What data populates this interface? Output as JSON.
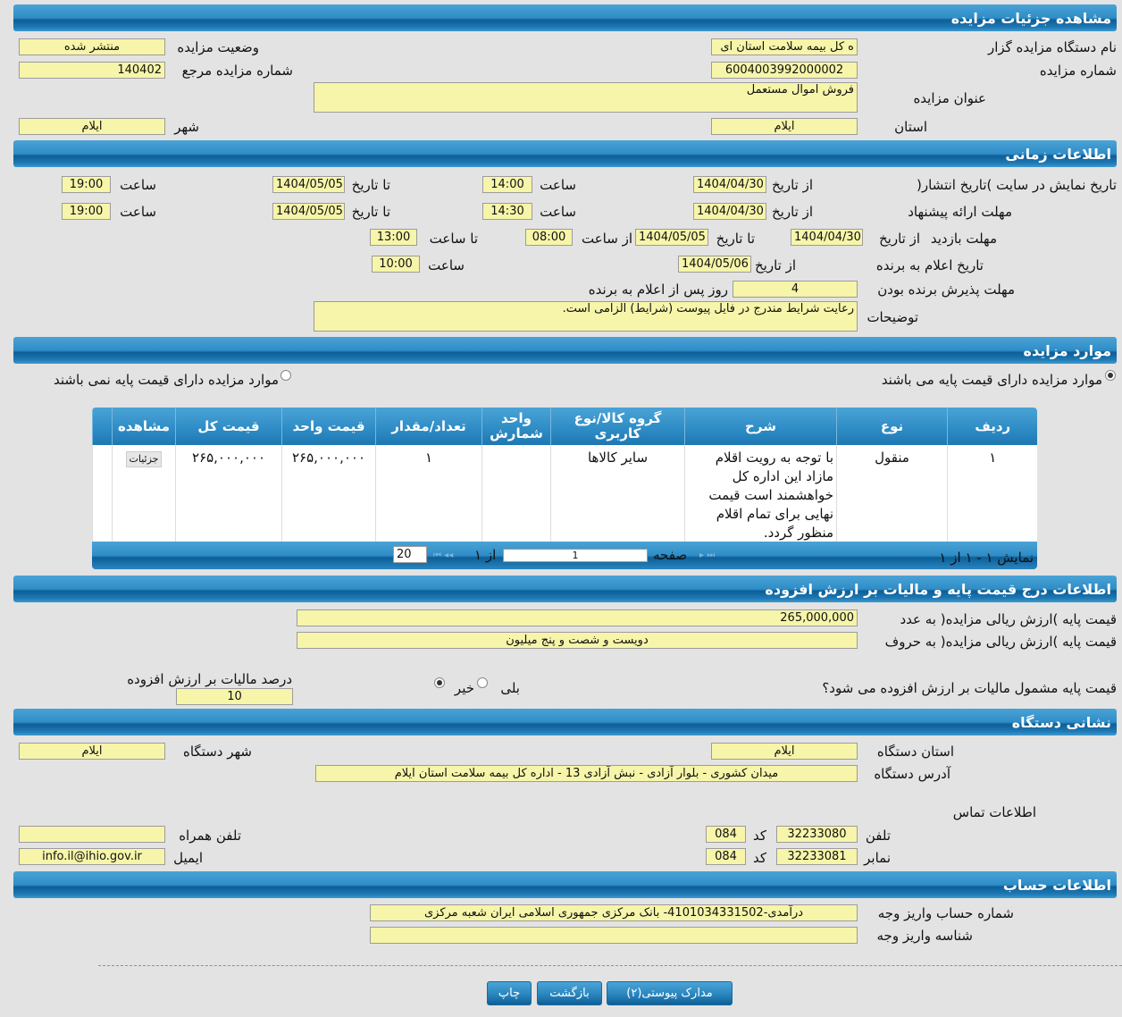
{
  "sections": {
    "details": "مشاهده جزئیات مزایده",
    "time": "اطلاعات زمانی",
    "items": "موارد مزایده",
    "price": "اطلاعات درج قیمت پایه و مالیات بر ارزش افزوده",
    "address": "نشانی دستگاه",
    "account": "اطلاعات حساب"
  },
  "details": {
    "org_label": "نام دستگاه مزایده گزار",
    "org_value": "ه کل بیمه سلامت استان ای",
    "status_label": "وضعیت مزایده",
    "status_value": "منتشر شده",
    "number_label": "شماره مزایده",
    "number_value": "6004003992000002",
    "ref_label": "شماره مزایده مرجع",
    "ref_value": "140402",
    "title_label": "عنوان مزایده",
    "title_value": "فروش اموال مستعمل",
    "province_label": "استان",
    "province_value": "ایلام",
    "city_label": "شهر",
    "city_value": "ایلام"
  },
  "time": {
    "from_date": "از تاریخ",
    "to_date": "تا تاریخ",
    "hour": "ساعت",
    "from_hour": "از ساعت",
    "to_hour": "تا ساعت",
    "publish": {
      "label": "تاریخ نمایش در سایت )تاریخ انتشار(",
      "from": "1404/04/30",
      "from_time": "14:00",
      "to": "1404/05/05",
      "to_time": "19:00"
    },
    "offer": {
      "label": "مهلت ارائه پیشنهاد",
      "from": "1404/04/30",
      "from_time": "14:30",
      "to": "1404/05/05",
      "to_time": "19:00"
    },
    "visit": {
      "label": "مهلت بازدید",
      "from": "1404/04/30",
      "to": "1404/05/05",
      "from_time": "08:00",
      "to_time": "13:00"
    },
    "winner": {
      "label": "تاریخ اعلام به برنده",
      "from": "1404/05/06",
      "time": "10:00"
    },
    "accept": {
      "label": "مهلت پذیرش برنده بودن",
      "value": "4",
      "suffix": "روز پس از اعلام به برنده"
    },
    "notes": {
      "label": "توضیحات",
      "value": "رعایت شرایط مندرج در فایل پیوست (شرایط) الزامی است."
    }
  },
  "items": {
    "radio_with": "موارد مزایده دارای قیمت پایه می باشند",
    "radio_without": "موارد مزایده دارای قیمت پایه نمی باشند",
    "columns": [
      "ردیف",
      "نوع",
      "شرح",
      "گروه کالا/نوع کاربری",
      "واحد شمارش",
      "تعداد/مقدار",
      "قیمت واحد",
      "قیمت کل",
      "مشاهده"
    ],
    "rows": [
      {
        "row": "۱",
        "type": "منقول",
        "desc": "با توجه به رویت اقلام مازاد این اداره کل خواهشمند است قیمت نهایی برای تمام اقلام منظور گردد.",
        "group": "سایر کالاها",
        "unit": "",
        "qty": "۱",
        "unit_price": "۲۶۵,۰۰۰,۰۰۰",
        "total": "۲۶۵,۰۰۰,۰۰۰",
        "view": "جزئیات"
      }
    ],
    "pager": {
      "page_label": "صفحه",
      "page": "1",
      "of": "از ۱",
      "page_size": "20",
      "summary": "نمایش ۱ - ۱ از ۱"
    }
  },
  "price": {
    "num_label": "قیمت پایه )ارزش ریالی مزایده( به عدد",
    "num_value": "265,000,000",
    "words_label": "قیمت پایه )ارزش ریالی مزایده( به حروف",
    "words_value": "دویست و شصت و پنج میلیون",
    "vat_question": "قیمت پایه مشمول مالیات بر ارزش افزوده می شود؟",
    "yes": "بلی",
    "no": "خیر",
    "vat_label": "درصد مالیات بر ارزش افزوده",
    "vat_value": "10"
  },
  "address": {
    "province_label": "استان دستگاه",
    "province_value": "ایلام",
    "city_label": "شهر دستگاه",
    "city_value": "ایلام",
    "addr_label": "آدرس دستگاه",
    "addr_value": "میدان کشوری - بلوار آزادی - نبش آزادی 13 - اداره کل بیمه سلامت استان ایلام",
    "contact_label": "اطلاعات تماس",
    "phone_label": "تلفن",
    "phone": "32233080",
    "code_label": "کد",
    "phone_code": "084",
    "fax_label": "نمابر",
    "fax": "32233081",
    "fax_code": "084",
    "mobile_label": "تلفن همراه",
    "mobile": "",
    "email_label": "ایمیل",
    "email": "info.il@ihio.gov.ir"
  },
  "account": {
    "number_label": "شماره حساب واریز وجه",
    "number_value": "درآمدی-4101034331502- بانک مرکزی جمهوری اسلامی ایران شعبه مرکزی",
    "id_label": "شناسه واریز وجه",
    "id_value": ""
  },
  "buttons": {
    "attachments": "مدارک پیوستی(۲)",
    "back": "بازگشت",
    "print": "چاپ"
  }
}
